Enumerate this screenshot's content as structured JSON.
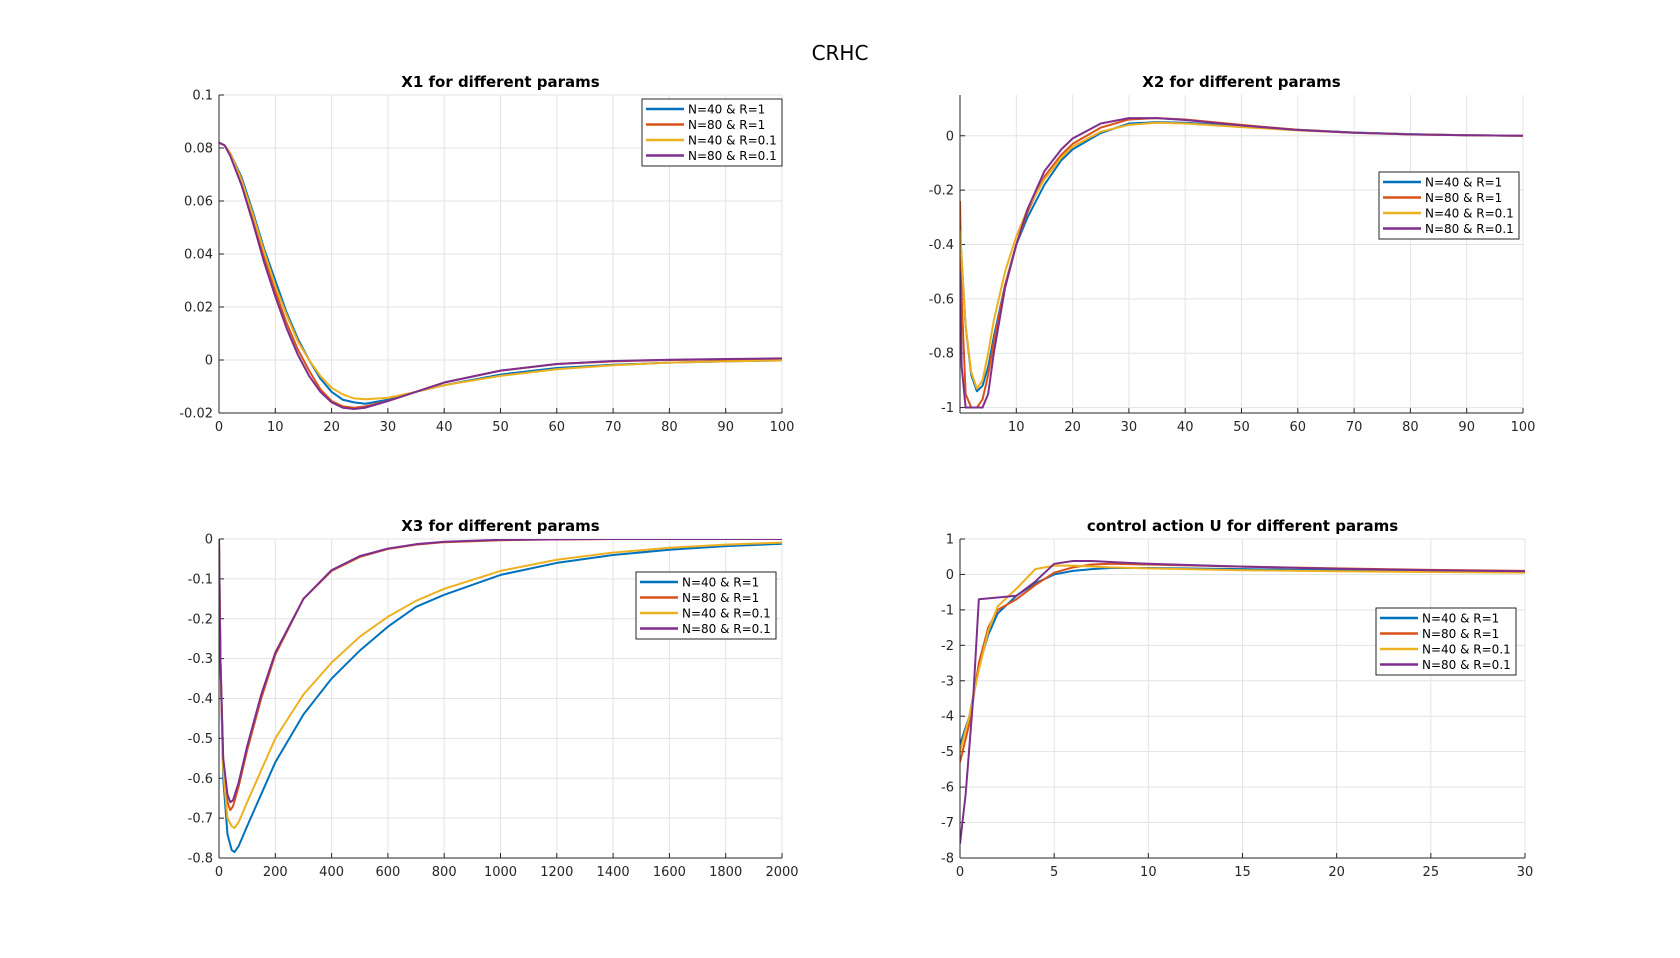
{
  "figure_title": "CRHC",
  "colors": {
    "N=40 & R=1": "#0072BD",
    "N=80 & R=1": "#D95319",
    "N=40 & R=0.1": "#EDB120",
    "N=80 & R=0.1": "#7E2F8E"
  },
  "chart_data": [
    {
      "type": "line",
      "title": "X1 for different params",
      "xlabel": "",
      "ylabel": "",
      "xlim": [
        0,
        100
      ],
      "ylim": [
        -0.02,
        0.1
      ],
      "xticks": [
        0,
        10,
        20,
        30,
        40,
        50,
        60,
        70,
        80,
        90,
        100
      ],
      "yticks": [
        -0.02,
        0,
        0.02,
        0.04,
        0.06,
        0.08,
        0.1
      ],
      "grid": true,
      "legend": "top-right",
      "series": [
        {
          "name": "N=40 & R=1",
          "x": [
            0,
            1,
            2,
            4,
            6,
            8,
            10,
            12,
            14,
            16,
            18,
            20,
            22,
            24,
            26,
            30,
            35,
            40,
            50,
            60,
            70,
            80,
            90,
            100
          ],
          "y": [
            0.082,
            0.081,
            0.078,
            0.069,
            0.056,
            0.042,
            0.03,
            0.018,
            0.008,
            0.0,
            -0.007,
            -0.012,
            -0.015,
            -0.016,
            -0.0165,
            -0.015,
            -0.012,
            -0.0095,
            -0.0055,
            -0.003,
            -0.0018,
            -0.001,
            -0.0005,
            -0.0002
          ]
        },
        {
          "name": "N=80 & R=1",
          "x": [
            0,
            1,
            2,
            4,
            6,
            8,
            10,
            12,
            14,
            16,
            18,
            20,
            22,
            24,
            26,
            30,
            35,
            40,
            50,
            60,
            70,
            80,
            90,
            100
          ],
          "y": [
            0.082,
            0.081,
            0.078,
            0.068,
            0.054,
            0.039,
            0.026,
            0.014,
            0.004,
            -0.004,
            -0.011,
            -0.0155,
            -0.0175,
            -0.018,
            -0.0175,
            -0.0155,
            -0.012,
            -0.0085,
            -0.004,
            -0.0015,
            -0.0005,
            0.0,
            0.0002,
            0.0003
          ]
        },
        {
          "name": "N=40 & R=0.1",
          "x": [
            0,
            1,
            2,
            4,
            6,
            8,
            10,
            12,
            14,
            16,
            18,
            20,
            22,
            24,
            26,
            30,
            35,
            40,
            50,
            60,
            70,
            80,
            90,
            100
          ],
          "y": [
            0.082,
            0.081,
            0.078,
            0.068,
            0.055,
            0.041,
            0.028,
            0.017,
            0.007,
            0.0,
            -0.006,
            -0.0105,
            -0.013,
            -0.0145,
            -0.0148,
            -0.0143,
            -0.012,
            -0.0095,
            -0.006,
            -0.0035,
            -0.002,
            -0.001,
            -0.0005,
            -0.0002
          ]
        },
        {
          "name": "N=80 & R=0.1",
          "x": [
            0,
            1,
            2,
            4,
            6,
            8,
            10,
            12,
            14,
            16,
            18,
            20,
            22,
            24,
            26,
            30,
            35,
            40,
            50,
            60,
            70,
            80,
            90,
            100
          ],
          "y": [
            0.082,
            0.081,
            0.077,
            0.066,
            0.052,
            0.037,
            0.024,
            0.012,
            0.002,
            -0.006,
            -0.012,
            -0.016,
            -0.018,
            -0.0185,
            -0.018,
            -0.0155,
            -0.012,
            -0.0085,
            -0.004,
            -0.0015,
            -0.0004,
            0.0001,
            0.0004,
            0.0006
          ]
        }
      ]
    },
    {
      "type": "line",
      "title": "X2 for different params",
      "xlabel": "",
      "ylabel": "",
      "xlim": [
        0,
        100
      ],
      "ylim": [
        -1.02,
        0.15
      ],
      "xticks": [
        10,
        20,
        30,
        40,
        50,
        60,
        70,
        80,
        90,
        100
      ],
      "yticks": [
        -1,
        -0.8,
        -0.6,
        -0.4,
        -0.2,
        0
      ],
      "grid": true,
      "legend": "right",
      "series": [
        {
          "name": "N=40 & R=1",
          "x": [
            0,
            1,
            2,
            3,
            4,
            5,
            6,
            8,
            10,
            12,
            15,
            18,
            20,
            25,
            30,
            35,
            40,
            50,
            60,
            70,
            80,
            90,
            100
          ],
          "y": [
            -0.35,
            -0.7,
            -0.88,
            -0.94,
            -0.92,
            -0.85,
            -0.74,
            -0.55,
            -0.4,
            -0.3,
            -0.18,
            -0.09,
            -0.05,
            0.01,
            0.045,
            0.05,
            0.048,
            0.035,
            0.022,
            0.012,
            0.006,
            0.002,
            0.0
          ]
        },
        {
          "name": "N=80 & R=1",
          "x": [
            0,
            0.3,
            1,
            2,
            3,
            4,
            5,
            6,
            8,
            10,
            12,
            15,
            18,
            20,
            25,
            30,
            35,
            40,
            50,
            60,
            70,
            80,
            90,
            100
          ],
          "y": [
            -0.24,
            -0.6,
            -0.95,
            -1.0,
            -1.0,
            -0.97,
            -0.88,
            -0.76,
            -0.55,
            -0.4,
            -0.28,
            -0.15,
            -0.07,
            -0.03,
            0.03,
            0.06,
            0.065,
            0.06,
            0.04,
            0.022,
            0.011,
            0.005,
            0.002,
            0.0
          ]
        },
        {
          "name": "N=40 & R=0.1",
          "x": [
            0,
            1,
            2,
            3,
            4,
            5,
            6,
            8,
            10,
            12,
            15,
            18,
            20,
            25,
            30,
            35,
            40,
            50,
            60,
            70,
            80,
            90,
            100
          ],
          "y": [
            -0.35,
            -0.7,
            -0.87,
            -0.93,
            -0.9,
            -0.8,
            -0.68,
            -0.5,
            -0.37,
            -0.27,
            -0.16,
            -0.08,
            -0.04,
            0.015,
            0.04,
            0.048,
            0.045,
            0.032,
            0.02,
            0.011,
            0.005,
            0.002,
            0.0
          ]
        },
        {
          "name": "N=80 & R=0.1",
          "x": [
            0,
            0.3,
            1,
            2,
            3,
            4,
            5,
            6,
            8,
            10,
            12,
            15,
            18,
            20,
            25,
            30,
            35,
            40,
            50,
            60,
            70,
            80,
            90,
            100
          ],
          "y": [
            -0.5,
            -0.85,
            -1.0,
            -1.0,
            -1.0,
            -1.0,
            -0.95,
            -0.8,
            -0.56,
            -0.4,
            -0.27,
            -0.13,
            -0.05,
            -0.01,
            0.045,
            0.065,
            0.065,
            0.058,
            0.038,
            0.021,
            0.011,
            0.005,
            0.002,
            0.0
          ]
        }
      ]
    },
    {
      "type": "line",
      "title": "X3 for different params",
      "xlabel": "",
      "ylabel": "",
      "xlim": [
        0,
        2000
      ],
      "ylim": [
        -0.8,
        0
      ],
      "xticks": [
        0,
        200,
        400,
        600,
        800,
        1000,
        1200,
        1400,
        1600,
        1800,
        2000
      ],
      "yticks": [
        -0.8,
        -0.7,
        -0.6,
        -0.5,
        -0.4,
        -0.3,
        -0.2,
        -0.1,
        0
      ],
      "grid": true,
      "legend": "top-right",
      "series": [
        {
          "name": "N=40 & R=1",
          "x": [
            0,
            5,
            15,
            30,
            45,
            55,
            70,
            100,
            150,
            200,
            300,
            400,
            500,
            600,
            700,
            800,
            1000,
            1200,
            1400,
            1600,
            1800,
            2000
          ],
          "y": [
            0,
            -0.3,
            -0.6,
            -0.74,
            -0.78,
            -0.785,
            -0.77,
            -0.72,
            -0.64,
            -0.56,
            -0.44,
            -0.35,
            -0.28,
            -0.22,
            -0.17,
            -0.14,
            -0.09,
            -0.06,
            -0.04,
            -0.027,
            -0.018,
            -0.012
          ]
        },
        {
          "name": "N=80 & R=1",
          "x": [
            0,
            5,
            15,
            30,
            40,
            50,
            70,
            100,
            150,
            200,
            300,
            400,
            500,
            600,
            700,
            800,
            1000,
            1200,
            1400,
            1600,
            1800,
            2000
          ],
          "y": [
            0,
            -0.3,
            -0.56,
            -0.66,
            -0.68,
            -0.67,
            -0.62,
            -0.53,
            -0.4,
            -0.29,
            -0.15,
            -0.08,
            -0.045,
            -0.025,
            -0.014,
            -0.008,
            -0.003,
            -0.001,
            0,
            0,
            0,
            0
          ]
        },
        {
          "name": "N=40 & R=0.1",
          "x": [
            0,
            5,
            15,
            30,
            45,
            55,
            70,
            100,
            150,
            200,
            300,
            400,
            500,
            600,
            700,
            800,
            1000,
            1200,
            1400,
            1600,
            1800,
            2000
          ],
          "y": [
            0,
            -0.3,
            -0.58,
            -0.7,
            -0.72,
            -0.725,
            -0.71,
            -0.66,
            -0.58,
            -0.5,
            -0.39,
            -0.31,
            -0.245,
            -0.195,
            -0.155,
            -0.125,
            -0.08,
            -0.052,
            -0.034,
            -0.022,
            -0.014,
            -0.009
          ]
        },
        {
          "name": "N=80 & R=0.1",
          "x": [
            0,
            5,
            15,
            30,
            40,
            50,
            70,
            100,
            150,
            200,
            300,
            400,
            500,
            600,
            700,
            800,
            1000,
            1200,
            1400,
            1600,
            1800,
            2000
          ],
          "y": [
            0,
            -0.3,
            -0.55,
            -0.64,
            -0.66,
            -0.655,
            -0.61,
            -0.52,
            -0.39,
            -0.285,
            -0.15,
            -0.078,
            -0.043,
            -0.024,
            -0.013,
            -0.007,
            -0.002,
            -0.001,
            0,
            0,
            0,
            0
          ]
        }
      ]
    },
    {
      "type": "line",
      "title": "control action U for different params",
      "xlabel": "",
      "ylabel": "",
      "xlim": [
        0,
        30
      ],
      "ylim": [
        -8,
        1
      ],
      "xticks": [
        0,
        5,
        10,
        15,
        20,
        25,
        30
      ],
      "yticks": [
        -8,
        -7,
        -6,
        -5,
        -4,
        -3,
        -2,
        -1,
        0,
        1
      ],
      "grid": true,
      "legend": "right",
      "series": [
        {
          "name": "N=40 & R=1",
          "x": [
            0,
            0.5,
            1,
            1.5,
            2,
            3,
            4,
            5,
            6,
            7,
            8,
            10,
            15,
            20,
            25,
            30
          ],
          "y": [
            -4.8,
            -4.0,
            -2.6,
            -1.7,
            -1.1,
            -0.6,
            -0.25,
            0.0,
            0.1,
            0.15,
            0.18,
            0.18,
            0.15,
            0.12,
            0.1,
            0.08
          ]
        },
        {
          "name": "N=80 & R=1",
          "x": [
            0,
            0.5,
            1,
            1.5,
            2,
            3,
            4,
            5,
            6,
            7,
            8,
            10,
            15,
            20,
            25,
            30
          ],
          "y": [
            -5.3,
            -4.2,
            -2.5,
            -1.5,
            -1.0,
            -0.7,
            -0.3,
            0.05,
            0.2,
            0.28,
            0.3,
            0.28,
            0.22,
            0.17,
            0.13,
            0.1
          ]
        },
        {
          "name": "N=40 & R=0.1",
          "x": [
            0,
            0.5,
            1,
            1.5,
            2,
            3,
            4,
            5,
            6,
            8,
            10,
            15,
            20,
            25,
            30
          ],
          "y": [
            -5.0,
            -4.0,
            -2.7,
            -1.6,
            -0.9,
            -0.4,
            0.15,
            0.25,
            0.25,
            0.2,
            0.17,
            0.12,
            0.09,
            0.07,
            0.05
          ]
        },
        {
          "name": "N=80 & R=0.1",
          "x": [
            0,
            0.3,
            0.7,
            1,
            2,
            3,
            4,
            5,
            6,
            7,
            8,
            10,
            15,
            20,
            25,
            30
          ],
          "y": [
            -7.6,
            -6.2,
            -3.5,
            -0.7,
            -0.65,
            -0.6,
            -0.2,
            0.3,
            0.38,
            0.38,
            0.35,
            0.3,
            0.22,
            0.16,
            0.12,
            0.09
          ]
        }
      ]
    }
  ]
}
